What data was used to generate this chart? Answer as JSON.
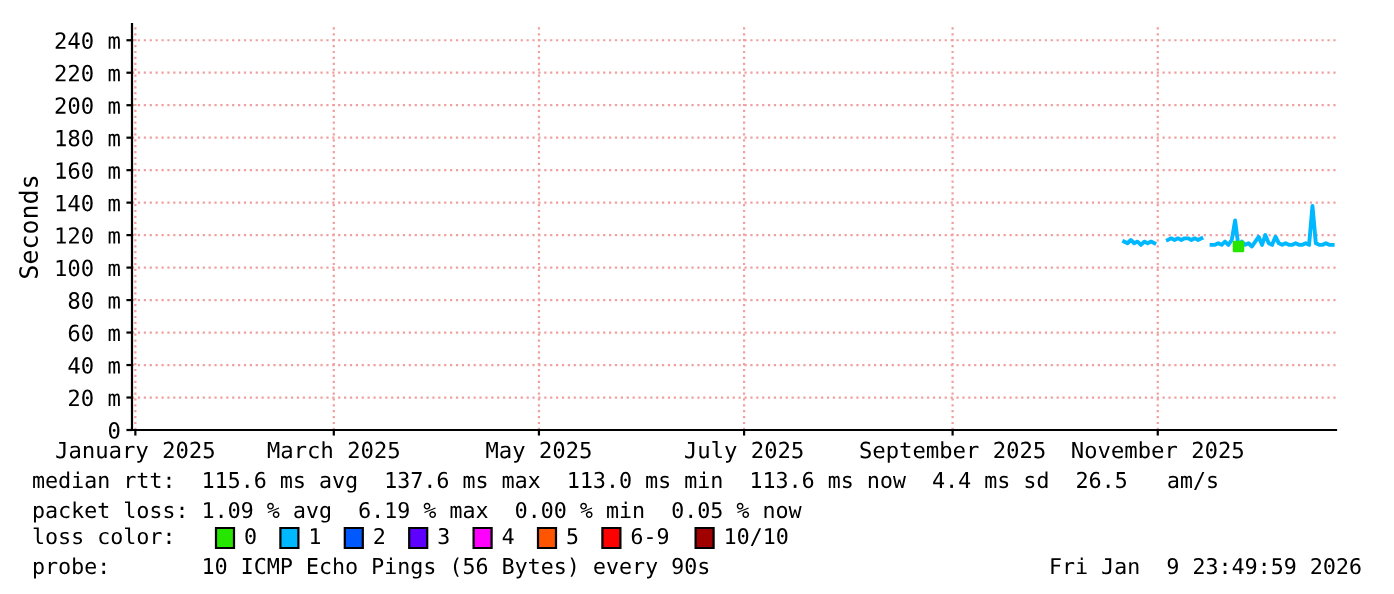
{
  "chart_data": {
    "type": "line",
    "ylabel": "Seconds",
    "x": [
      "2025-10-22",
      "2025-10-23",
      "2025-10-24",
      "2025-10-25",
      "2025-10-26",
      "2025-10-27",
      "2025-10-28",
      "2025-10-29",
      "2025-10-30",
      "2025-10-31",
      "2025-11-01",
      "2025-11-02",
      "2025-11-03",
      "2025-11-04",
      "2025-11-05",
      "2025-11-06",
      "2025-11-07",
      "2025-11-08",
      "2025-11-09",
      "2025-11-10",
      "2025-11-11",
      "2025-11-12",
      "2025-11-13",
      "2025-11-14",
      "2025-11-15",
      "2025-11-16",
      "2025-11-17",
      "2025-11-18",
      "2025-11-19",
      "2025-11-20",
      "2025-11-21",
      "2025-11-22",
      "2025-11-23",
      "2025-11-24",
      "2025-11-25",
      "2025-11-26",
      "2025-11-27",
      "2025-11-28",
      "2025-11-29",
      "2025-11-30",
      "2025-12-01",
      "2025-12-02",
      "2025-12-03",
      "2025-12-04",
      "2025-12-05",
      "2025-12-06",
      "2025-12-07",
      "2025-12-08",
      "2025-12-09",
      "2025-12-10",
      "2025-12-11",
      "2025-12-12",
      "2025-12-13",
      "2025-12-14",
      "2025-12-15",
      "2025-12-16",
      "2025-12-17",
      "2025-12-18",
      "2025-12-19",
      "2025-12-20",
      "2025-12-21",
      "2025-12-22",
      "2025-12-23"
    ],
    "series": [
      {
        "name": "0",
        "type": "scatter",
        "marker": "square",
        "color": "#26e600",
        "values": [
          null,
          null,
          null,
          null,
          null,
          null,
          null,
          null,
          null,
          null,
          null,
          null,
          null,
          null,
          null,
          null,
          null,
          null,
          null,
          null,
          null,
          null,
          null,
          null,
          null,
          null,
          null,
          null,
          null,
          null,
          null,
          null,
          null,
          null,
          113,
          null,
          null,
          null,
          null,
          null,
          null,
          null,
          null,
          null,
          null,
          null,
          null,
          null,
          null,
          null,
          null,
          null,
          null,
          null,
          null,
          null,
          null,
          null,
          null,
          null,
          null,
          null,
          null
        ]
      },
      {
        "name": "1",
        "color": "#00b8ff",
        "values": [
          116,
          115,
          117,
          115,
          116,
          114,
          116,
          115,
          116,
          115,
          null,
          null,
          null,
          117,
          118,
          117,
          118,
          117,
          118,
          118,
          117,
          118,
          117,
          118,
          null,
          null,
          114,
          114,
          115,
          114,
          116,
          114,
          117,
          129,
          113,
          116,
          114,
          115,
          113,
          116,
          119,
          114,
          120,
          115,
          114,
          119,
          115,
          114,
          115,
          114,
          114,
          115,
          114,
          114,
          115,
          114,
          138,
          115,
          114,
          114,
          115,
          114,
          114
        ]
      },
      {
        "name": "2",
        "color": "#0059ff",
        "values": [
          null,
          null,
          null,
          null,
          null,
          null,
          null,
          null,
          null,
          null,
          null,
          null,
          null,
          null,
          null,
          null,
          null,
          null,
          null,
          null,
          null,
          null,
          null,
          null,
          null,
          null,
          null,
          null,
          null,
          null,
          null,
          null,
          null,
          null,
          null,
          null,
          null,
          null,
          null,
          null,
          null,
          null,
          null,
          null,
          null,
          null,
          null,
          null,
          null,
          null,
          null,
          null,
          null,
          null,
          null,
          null,
          null,
          null,
          null,
          null,
          null,
          null,
          null
        ]
      },
      {
        "name": "3",
        "color": "#5e00ff",
        "values": [
          null,
          null,
          null,
          null,
          null,
          null,
          null,
          null,
          null,
          null,
          null,
          null,
          null,
          null,
          null,
          null,
          null,
          null,
          null,
          null,
          null,
          null,
          null,
          null,
          null,
          null,
          null,
          null,
          null,
          null,
          null,
          null,
          null,
          null,
          null,
          null,
          null,
          null,
          null,
          null,
          null,
          null,
          null,
          null,
          null,
          null,
          null,
          null,
          null,
          null,
          null,
          null,
          null,
          null,
          null,
          null,
          null,
          null,
          null,
          null,
          null,
          null,
          null
        ]
      },
      {
        "name": "4",
        "color": "#ff00ff",
        "values": [
          null,
          null,
          null,
          null,
          null,
          null,
          null,
          null,
          null,
          null,
          null,
          null,
          null,
          null,
          null,
          null,
          null,
          null,
          null,
          null,
          null,
          null,
          null,
          null,
          null,
          null,
          null,
          null,
          null,
          null,
          null,
          null,
          null,
          null,
          null,
          null,
          null,
          null,
          null,
          null,
          null,
          null,
          null,
          null,
          null,
          null,
          null,
          null,
          null,
          null,
          null,
          null,
          null,
          null,
          null,
          null,
          null,
          null,
          null,
          null,
          null,
          null,
          null
        ]
      },
      {
        "name": "5",
        "color": "#ff5500",
        "values": [
          null,
          null,
          null,
          null,
          null,
          null,
          null,
          null,
          null,
          null,
          null,
          null,
          null,
          null,
          null,
          null,
          null,
          null,
          null,
          null,
          null,
          null,
          null,
          null,
          null,
          null,
          null,
          null,
          null,
          null,
          null,
          null,
          null,
          null,
          null,
          null,
          null,
          null,
          null,
          null,
          null,
          null,
          null,
          null,
          null,
          null,
          null,
          null,
          null,
          null,
          null,
          null,
          null,
          null,
          null,
          null,
          null,
          null,
          null,
          null,
          null,
          null,
          null
        ]
      },
      {
        "name": "6-9",
        "color": "#ff0000",
        "values": [
          null,
          null,
          null,
          null,
          null,
          null,
          null,
          null,
          null,
          null,
          null,
          null,
          null,
          null,
          null,
          null,
          null,
          null,
          null,
          null,
          null,
          null,
          null,
          null,
          null,
          null,
          null,
          null,
          null,
          null,
          null,
          null,
          null,
          null,
          null,
          null,
          null,
          null,
          null,
          null,
          null,
          null,
          null,
          null,
          null,
          null,
          null,
          null,
          null,
          null,
          null,
          null,
          null,
          null,
          null,
          null,
          null,
          null,
          null,
          null,
          null,
          null,
          null
        ]
      },
      {
        "name": "10/10",
        "color": "#a10000",
        "values": [
          null,
          null,
          null,
          null,
          null,
          null,
          null,
          null,
          null,
          null,
          null,
          null,
          null,
          null,
          null,
          null,
          null,
          null,
          null,
          null,
          null,
          null,
          null,
          null,
          null,
          null,
          null,
          null,
          null,
          null,
          null,
          null,
          null,
          null,
          null,
          null,
          null,
          null,
          null,
          null,
          null,
          null,
          null,
          null,
          null,
          null,
          null,
          null,
          null,
          null,
          null,
          null,
          null,
          null,
          null,
          null,
          null,
          null,
          null,
          null,
          null,
          null,
          null
        ]
      }
    ],
    "legend": "bottom",
    "legend_title": "loss color:",
    "grid": true,
    "marker": "none",
    "line_style": "solid",
    "xlim": [
      "2024-12-31",
      "2025-12-24"
    ],
    "xticks": [
      {
        "value": "2025-01-01",
        "label": "January 2025"
      },
      {
        "value": "2025-03-01",
        "label": "March 2025"
      },
      {
        "value": "2025-05-01",
        "label": "May 2025"
      },
      {
        "value": "2025-07-01",
        "label": "July 2025"
      },
      {
        "value": "2025-09-01",
        "label": "September 2025"
      },
      {
        "value": "2025-11-01",
        "label": "November 2025"
      }
    ],
    "ylim": [
      0,
      250
    ],
    "yticks": [
      0,
      {
        "value": 20,
        "label": "20 m"
      },
      {
        "value": 40,
        "label": "40 m"
      },
      {
        "value": 60,
        "label": "60 m"
      },
      {
        "value": 80,
        "label": "80 m"
      },
      {
        "value": 100,
        "label": "100 m"
      },
      {
        "value": 120,
        "label": "120 m"
      },
      {
        "value": 140,
        "label": "140 m"
      },
      {
        "value": 160,
        "label": "160 m"
      },
      {
        "value": 180,
        "label": "180 m"
      },
      {
        "value": 200,
        "label": "200 m"
      },
      {
        "value": 220,
        "label": "220 m"
      },
      {
        "value": 240,
        "label": "240 m"
      }
    ],
    "annotations": [
      "median rtt:  115.6 ms avg  137.6 ms max  113.0 ms min  113.6 ms now  4.4 ms sd  26.5   am/s",
      "packet loss: 1.09 % avg  6.19 % max  0.00 % min  0.05 % now",
      "probe:       10 ICMP Echo Pings (56 Bytes) every 90s",
      "Fri Jan  9 23:49:59 2026"
    ]
  }
}
